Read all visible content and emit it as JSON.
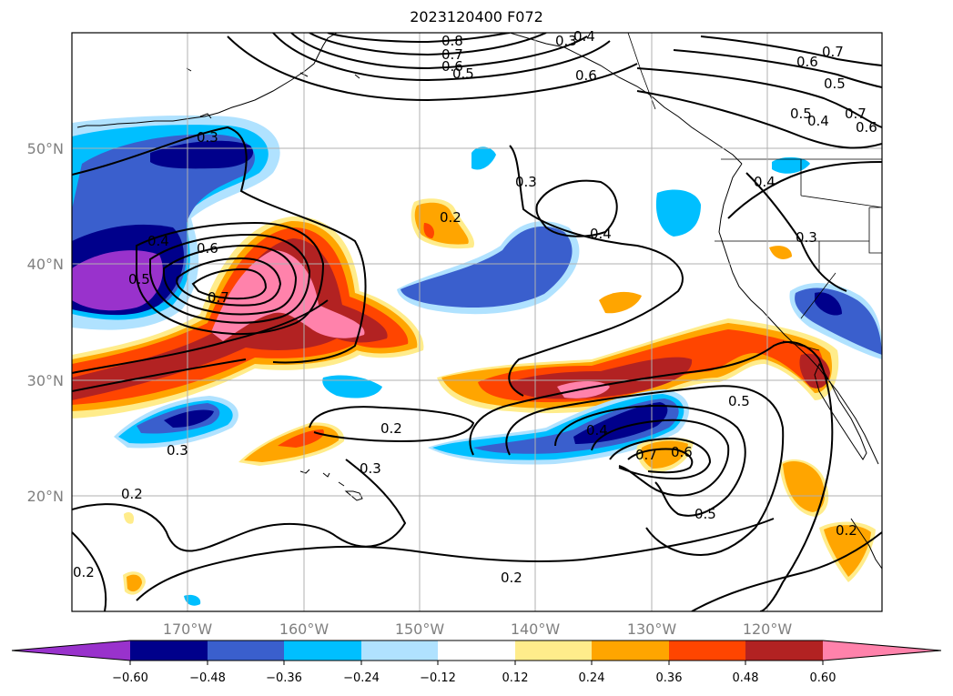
{
  "title": "2023120400 F072",
  "map": {
    "latitude_labels": [
      "50°N",
      "40°N",
      "30°N",
      "20°N"
    ],
    "longitude_labels": [
      "170°W",
      "160°W",
      "150°W",
      "140°W",
      "130°W",
      "120°W"
    ],
    "contour_labels": [
      "0.8",
      "0.7",
      "0.6",
      "0.5",
      "0.3",
      "0.4",
      "0.5",
      "0.6",
      "0.7",
      "0.2",
      "0.3",
      "0.4",
      "0.7",
      "0.6",
      "0.5",
      "0.4",
      "0.3",
      "0.2",
      "0.3",
      "0.5",
      "0.5",
      "0.7",
      "0.6",
      "0.4",
      "0.2",
      "0.3",
      "0.2",
      "0.2",
      "0.2",
      "0.7",
      "0.6",
      "0.5",
      "0.4",
      "0.6",
      "0.4",
      "0.3"
    ],
    "grid": true
  },
  "colorbar": {
    "ticks": [
      "−0.60",
      "−0.48",
      "−0.36",
      "−0.24",
      "−0.12",
      "0.12",
      "0.24",
      "0.36",
      "0.48",
      "0.60"
    ],
    "colors": [
      "#9932cc",
      "#00008b",
      "#3a5fcd",
      "#00bfff",
      "#b0e2ff",
      "#ffffff",
      "#ffec8b",
      "#ffa500",
      "#ff4500",
      "#b22222",
      "#ff82ab"
    ],
    "extend": "both"
  }
}
